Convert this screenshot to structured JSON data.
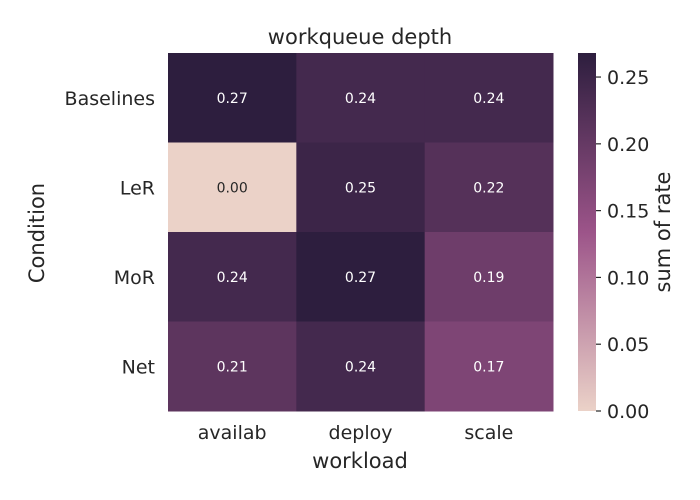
{
  "chart_data": {
    "type": "heatmap",
    "title": "workqueue depth",
    "xlabel": "workload",
    "ylabel": "Condition",
    "x_categories": [
      "availab",
      "deploy",
      "scale"
    ],
    "y_categories": [
      "Baselines",
      "LeR",
      "MoR",
      "Net"
    ],
    "values": [
      [
        0.27,
        0.24,
        0.24
      ],
      [
        0.0,
        0.25,
        0.22
      ],
      [
        0.24,
        0.27,
        0.19
      ],
      [
        0.21,
        0.24,
        0.17
      ]
    ],
    "value_labels": [
      [
        "0.27",
        "0.24",
        "0.24"
      ],
      [
        "0.00",
        "0.25",
        "0.22"
      ],
      [
        "0.24",
        "0.27",
        "0.19"
      ],
      [
        "0.21",
        "0.24",
        "0.17"
      ]
    ],
    "colorbar": {
      "label": "sum of rate",
      "range": [
        0.0,
        0.268
      ],
      "ticks": [
        0.0,
        0.05,
        0.1,
        0.15,
        0.2,
        0.25
      ],
      "tick_labels": [
        "0.00",
        "0.05",
        "0.10",
        "0.15",
        "0.20",
        "0.25"
      ]
    },
    "colormap": {
      "low": "#ebd2c8",
      "mid": "#9c5489",
      "high": "#2d1e3e"
    },
    "grid": false
  }
}
